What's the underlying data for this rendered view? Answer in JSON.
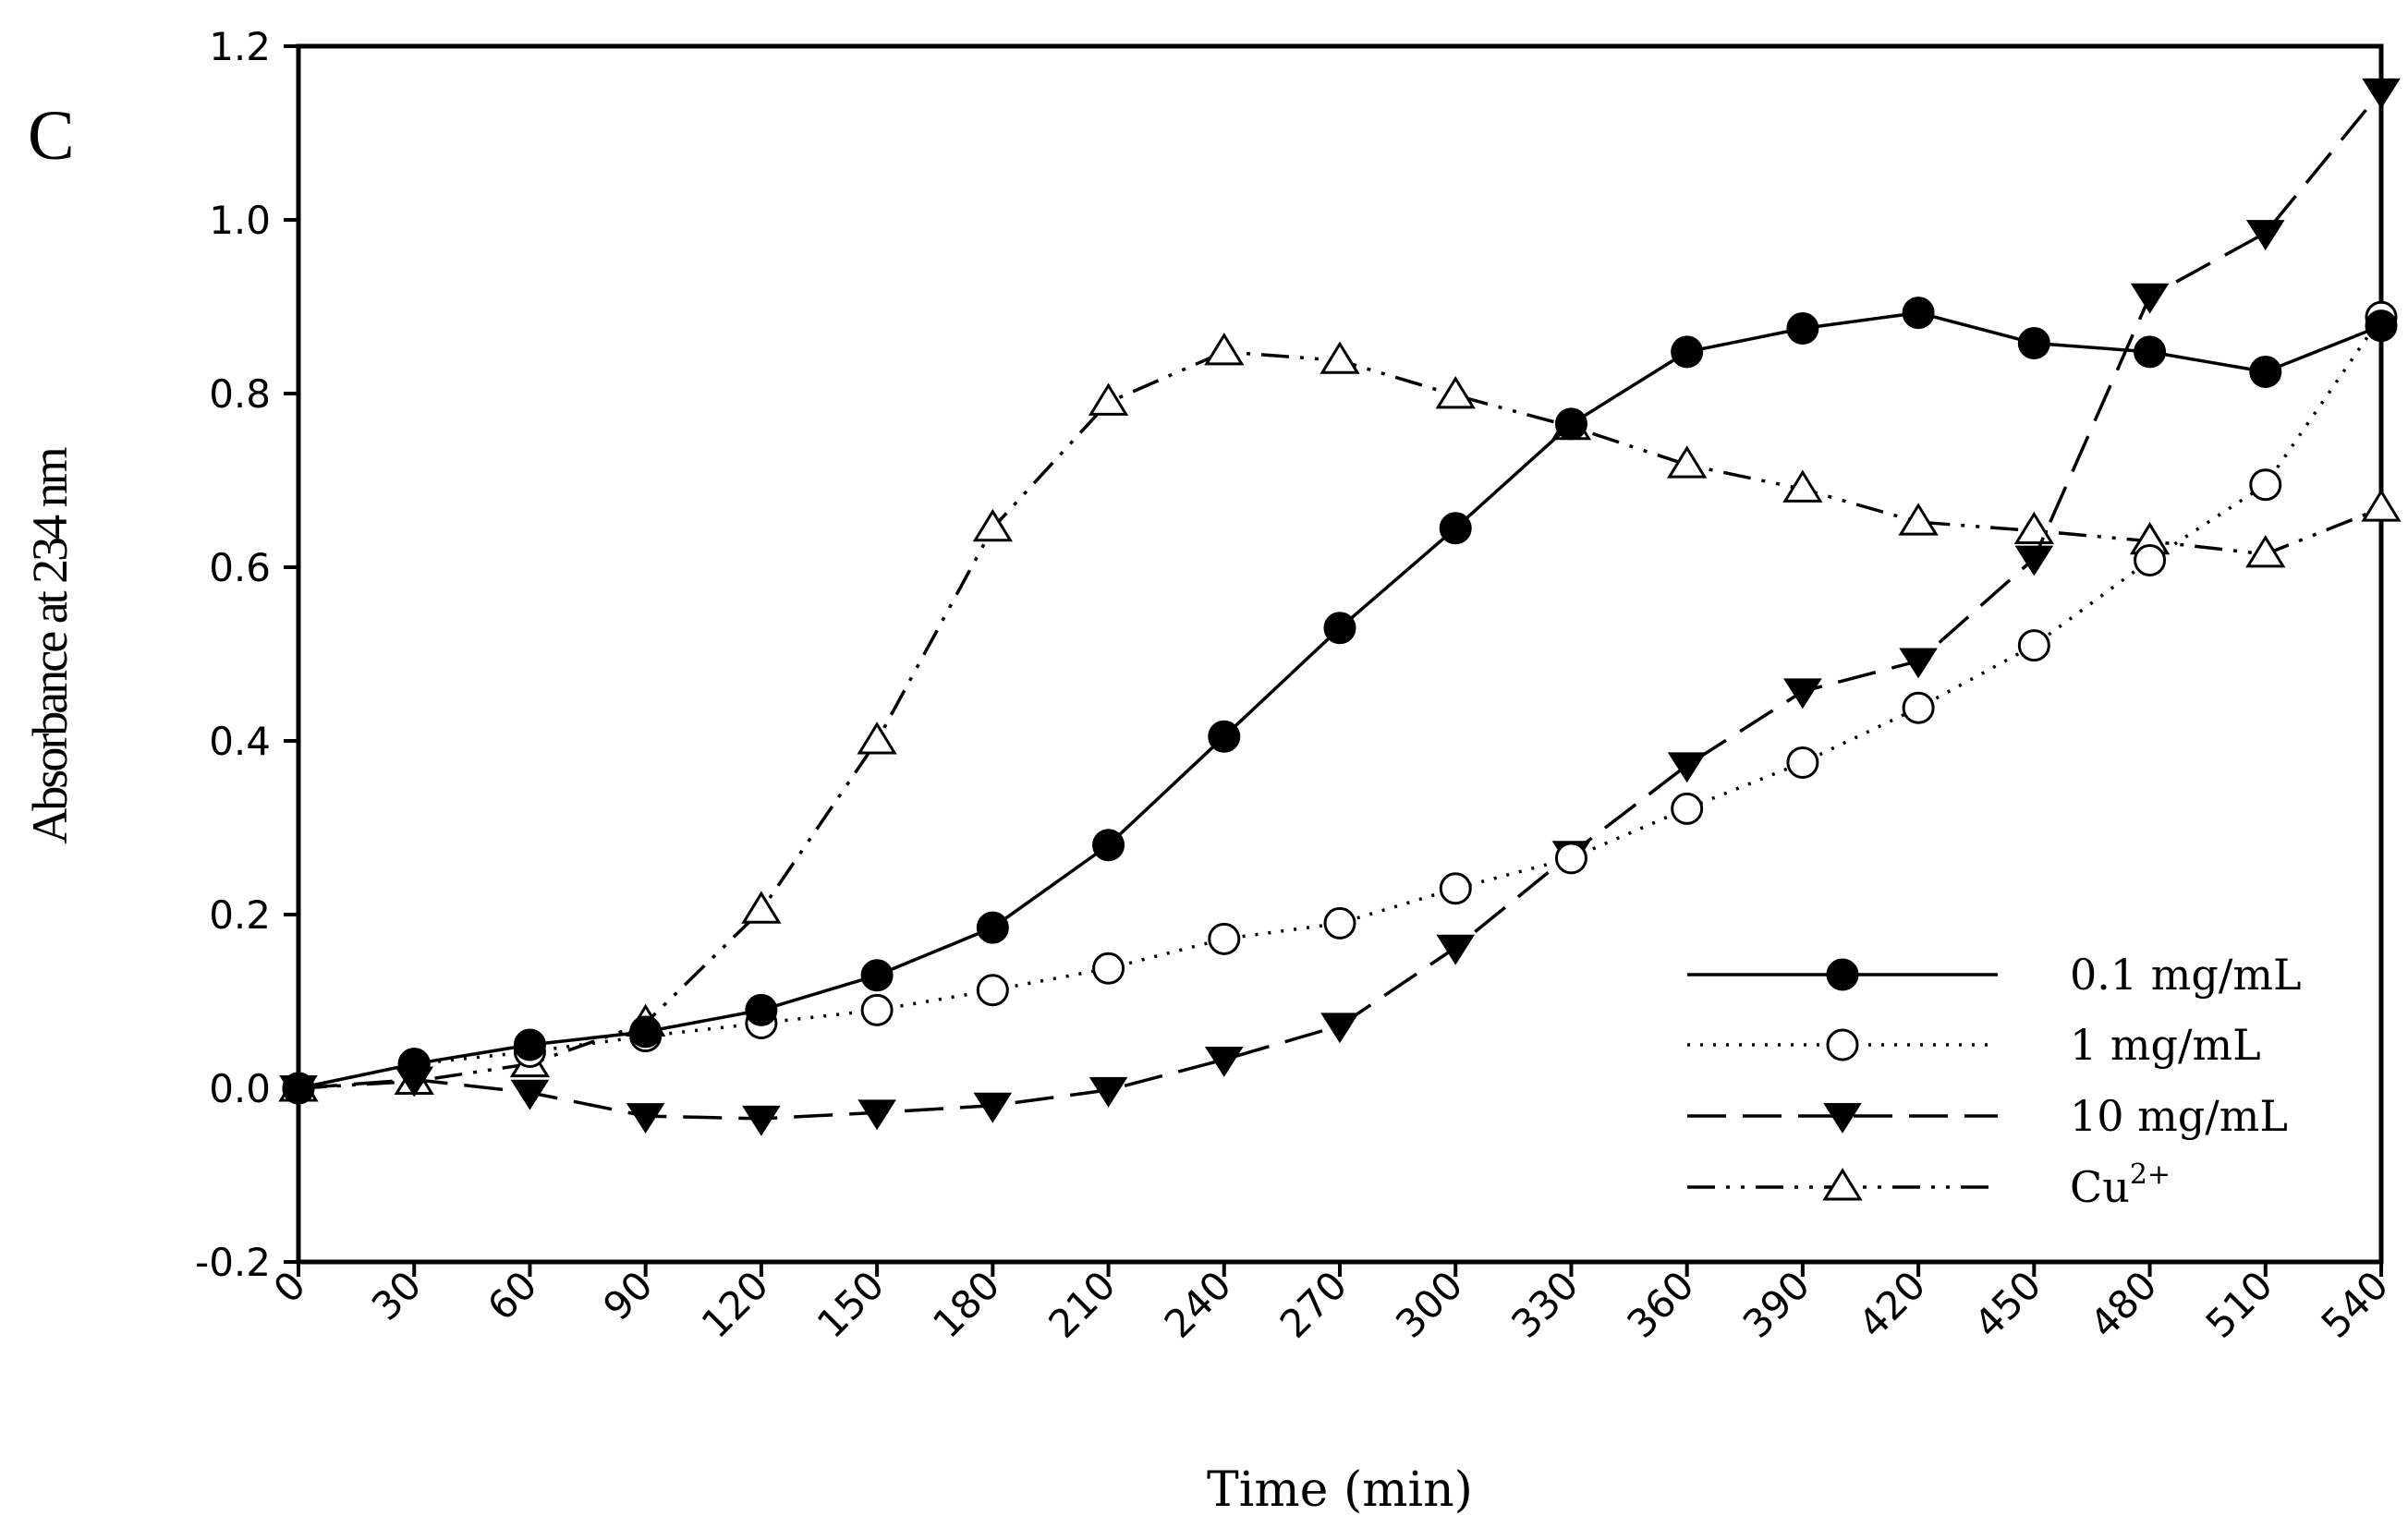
{
  "chart_data": {
    "type": "line",
    "panel_label": "C",
    "title": "",
    "xlabel": "Time (min)",
    "ylabel": "Absorbance at 234 nm",
    "xlim": [
      0,
      540
    ],
    "ylim": [
      -0.2,
      1.2
    ],
    "x_ticks": [
      "0",
      "30",
      "60",
      "90",
      "120",
      "150",
      "180",
      "210",
      "240",
      "270",
      "300",
      "330",
      "360",
      "390",
      "420",
      "450",
      "480",
      "510",
      "540"
    ],
    "y_ticks": [
      "-0.2",
      "0.0",
      "0.2",
      "0.4",
      "0.6",
      "0.8",
      "1.0",
      "1.2"
    ],
    "grid": false,
    "legend_position": "bottom-right",
    "x": [
      0,
      30,
      60,
      90,
      120,
      150,
      180,
      210,
      240,
      270,
      300,
      330,
      360,
      390,
      420,
      450,
      480,
      510,
      540
    ],
    "series": [
      {
        "name": "0.1 mg/mL",
        "marker": "filled-circle",
        "line_style": "solid",
        "values": [
          0.0,
          0.028,
          0.05,
          0.065,
          0.09,
          0.13,
          0.185,
          0.28,
          0.405,
          0.53,
          0.645,
          0.765,
          0.848,
          0.875,
          0.893,
          0.858,
          0.848,
          0.825,
          0.878
        ]
      },
      {
        "name": "1 mg/mL",
        "marker": "open-circle",
        "line_style": "dotted",
        "values": [
          0.0,
          0.028,
          0.042,
          0.06,
          0.075,
          0.09,
          0.113,
          0.138,
          0.172,
          0.19,
          0.23,
          0.265,
          0.322,
          0.375,
          0.438,
          0.51,
          0.608,
          0.695,
          0.888
        ]
      },
      {
        "name": "10 mg/mL",
        "marker": "filled-triangle-down",
        "line_style": "dashed",
        "values": [
          0.0,
          0.01,
          -0.005,
          -0.032,
          -0.035,
          -0.028,
          -0.02,
          -0.002,
          0.033,
          0.072,
          0.162,
          0.27,
          0.372,
          0.457,
          0.492,
          0.61,
          0.912,
          0.985,
          1.148
        ]
      },
      {
        "name": "Cu",
        "name_sup": "2+",
        "marker": "open-triangle-up",
        "line_style": "dash-dot-dot",
        "values": [
          0.0,
          0.008,
          0.028,
          0.075,
          0.205,
          0.4,
          0.645,
          0.79,
          0.848,
          0.838,
          0.798,
          0.762,
          0.718,
          0.69,
          0.652,
          0.642,
          0.63,
          0.615,
          0.668
        ]
      }
    ]
  }
}
